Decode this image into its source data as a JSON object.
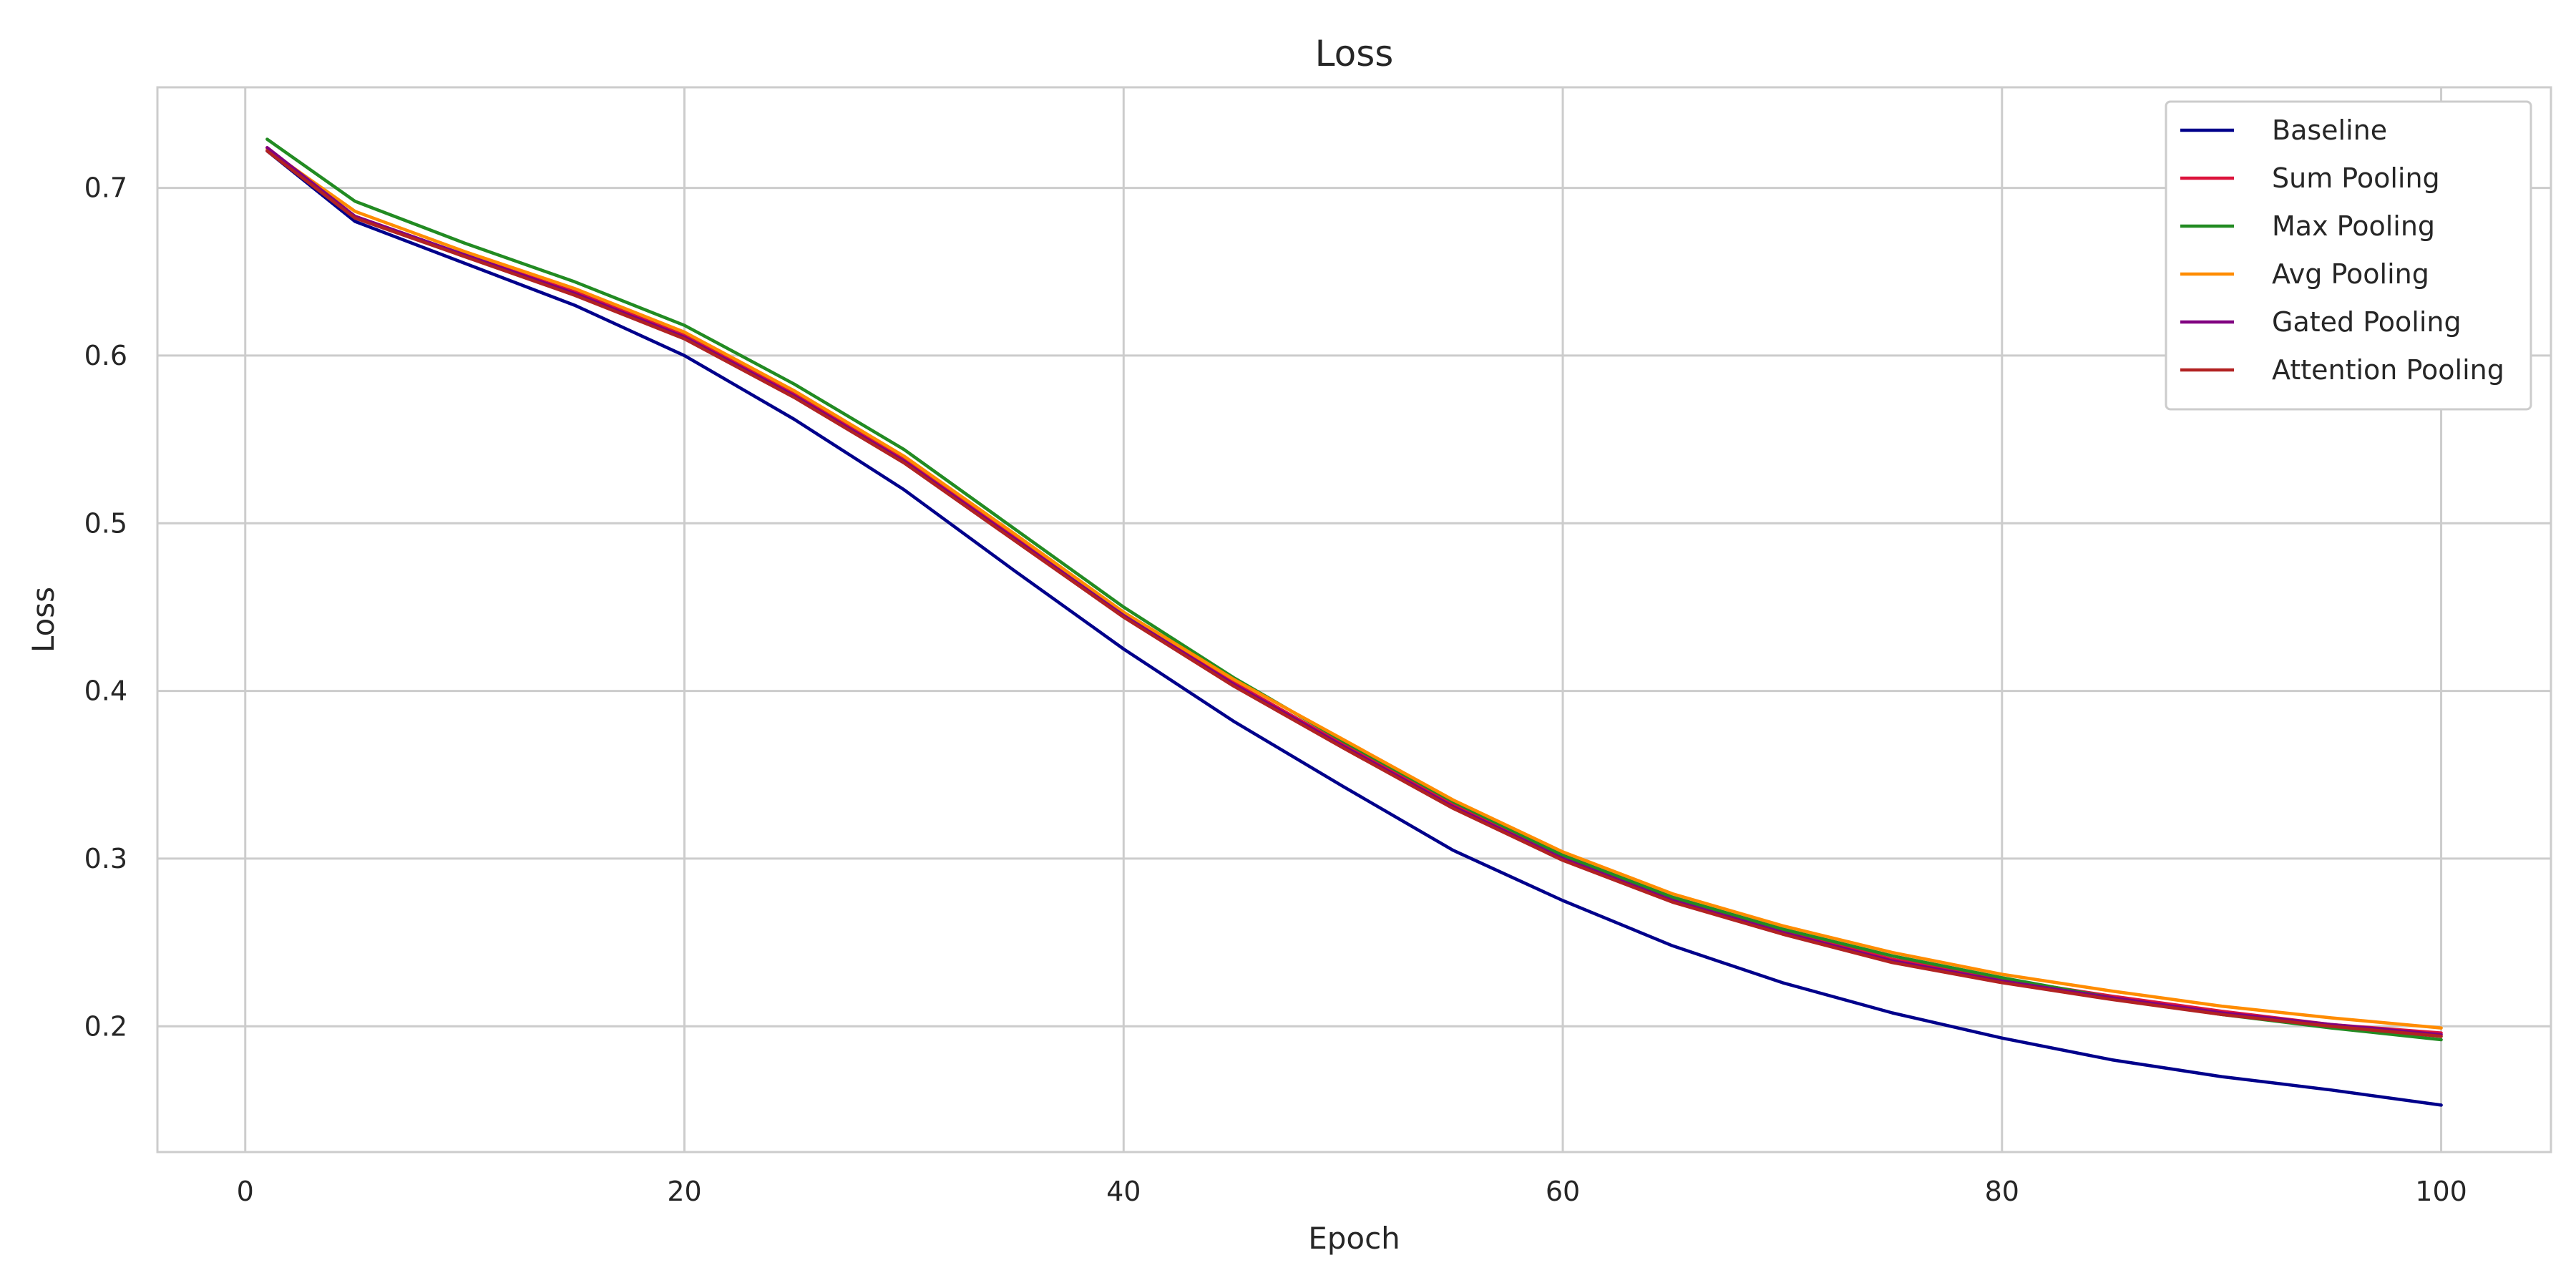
{
  "chart_data": {
    "type": "line",
    "title": "Loss",
    "xlabel": "Epoch",
    "ylabel": "Loss",
    "xlim": [
      -4,
      105
    ],
    "ylim": [
      0.125,
      0.76
    ],
    "xticks": [
      0,
      20,
      40,
      60,
      80,
      100
    ],
    "yticks": [
      0.2,
      0.3,
      0.4,
      0.5,
      0.6,
      0.7
    ],
    "ytick_labels": [
      "0.2",
      "0.3",
      "0.4",
      "0.5",
      "0.6",
      "0.7"
    ],
    "grid": true,
    "legend_position": "top-right",
    "x": [
      1,
      5,
      10,
      15,
      20,
      25,
      30,
      35,
      40,
      45,
      50,
      55,
      60,
      65,
      70,
      75,
      80,
      85,
      90,
      95,
      100
    ],
    "series": [
      {
        "name": "Baseline",
        "color": "#00008b",
        "values": [
          0.722,
          0.68,
          0.655,
          0.63,
          0.6,
          0.562,
          0.52,
          0.472,
          0.425,
          0.382,
          0.343,
          0.305,
          0.275,
          0.248,
          0.226,
          0.208,
          0.193,
          0.18,
          0.17,
          0.162,
          0.153
        ]
      },
      {
        "name": "Sum Pooling",
        "color": "#dc143c",
        "values": [
          0.724,
          0.683,
          0.66,
          0.638,
          0.612,
          0.577,
          0.538,
          0.492,
          0.446,
          0.405,
          0.368,
          0.332,
          0.301,
          0.276,
          0.257,
          0.24,
          0.228,
          0.218,
          0.209,
          0.201,
          0.196
        ]
      },
      {
        "name": "Max Pooling",
        "color": "#228b22",
        "values": [
          0.729,
          0.692,
          0.667,
          0.644,
          0.618,
          0.583,
          0.544,
          0.497,
          0.45,
          0.408,
          0.37,
          0.334,
          0.302,
          0.277,
          0.258,
          0.242,
          0.229,
          0.217,
          0.207,
          0.199,
          0.192
        ]
      },
      {
        "name": "Avg Pooling",
        "color": "#ff8c00",
        "values": [
          0.723,
          0.686,
          0.662,
          0.64,
          0.614,
          0.579,
          0.54,
          0.494,
          0.447,
          0.407,
          0.371,
          0.335,
          0.304,
          0.279,
          0.26,
          0.244,
          0.231,
          0.221,
          0.212,
          0.205,
          0.199
        ]
      },
      {
        "name": "Gated Pooling",
        "color": "#800080",
        "values": [
          0.724,
          0.683,
          0.66,
          0.637,
          0.611,
          0.576,
          0.537,
          0.491,
          0.445,
          0.404,
          0.367,
          0.331,
          0.3,
          0.275,
          0.256,
          0.239,
          0.227,
          0.217,
          0.208,
          0.201,
          0.195
        ]
      },
      {
        "name": "Attention Pooling",
        "color": "#b22222",
        "values": [
          0.722,
          0.682,
          0.659,
          0.636,
          0.61,
          0.575,
          0.536,
          0.49,
          0.444,
          0.403,
          0.366,
          0.33,
          0.299,
          0.274,
          0.255,
          0.238,
          0.226,
          0.216,
          0.207,
          0.2,
          0.194
        ]
      }
    ]
  }
}
